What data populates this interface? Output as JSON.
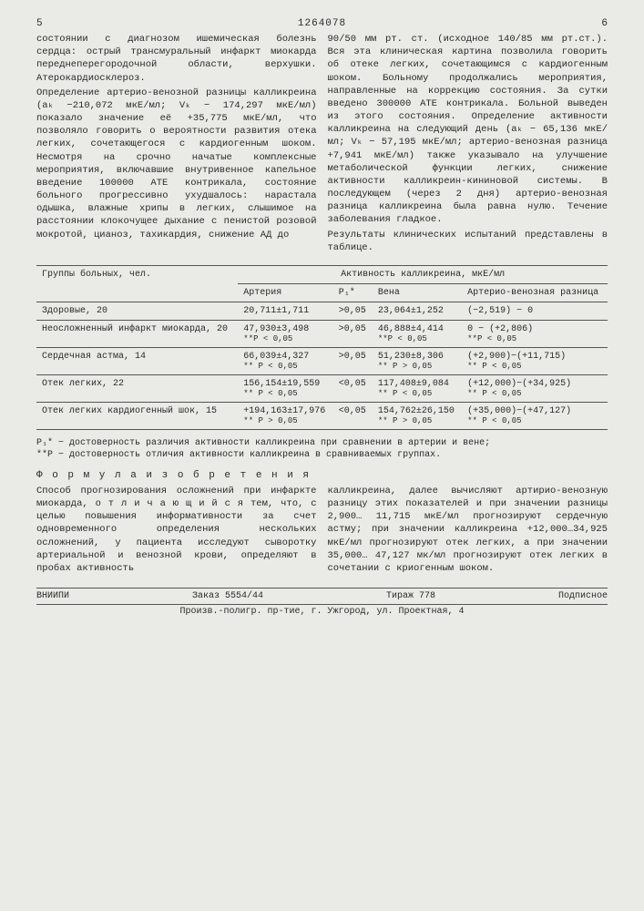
{
  "header": {
    "left_num": "5",
    "right_num": "6",
    "doc_number": "1264078"
  },
  "left_col": {
    "p1": "состоянии с диагнозом ишемическая болезнь сердца: острый трансмуральный инфаркт миокарда переднеперегородочной области, верхушки. Атерокардиосклероз.",
    "p2": "Определение артерио-венозной разницы калликреина (aₖ −210,072 мкЕ/мл; Vₖ − 174,297 мкЕ/мл) показало значение её +35,775 мкЕ/мл, что позволяло говорить о вероятности развития отека легких, сочетающегося с кардиогенным шоком. Несмотря на срочно начатые комплексные мероприятия, включавшие внутривенное капельное введение 100000 АТЕ контрикала, состояние больного прогрессивно ухудшалось: нарастала одышка, влажные хрипы в легких, слышимое на расстоянии клокочущее дыхание с пенистой розовой мокротой, цианоз, тахикардия, снижение АД до"
  },
  "right_col": {
    "p1": "90/50 мм рт. ст. (исходное 140/85 мм рт.ст.). Вся эта клиническая картина позволила говорить об отеке легких, сочетающимся с кардиогенным шоком. Больному продолжались мероприятия, направленные на коррекцию состояния. За сутки введено 300000 АТЕ контрикала. Больной выведен из этого состояния. Определение активности калликреина на следующий день (aₖ − 65,136 мкЕ/мл; Vₖ − 57,195 мкЕ/мл; артерио-венозная разница +7,941 мкЕ/мл) также указывало на улучшение метаболической функции легких, снижение активности калликреин-кининовой системы. В последующем (через 2 дня) артерио-венозная разница калликреина была равна нулю. Течение заболевания гладкое.",
    "p2": "Результаты клинических испытаний представлены в таблице."
  },
  "line_nums": {
    "n5": "5",
    "n10": "10",
    "n15": "15",
    "n20": "20",
    "n50": "50",
    "n55": "55"
  },
  "table": {
    "h_group": "Группы больных, чел.",
    "h_activity": "Активность калликреина, мкЕ/мл",
    "h_art": "Артерия",
    "h_p": "P₁*",
    "h_vena": "Вена",
    "h_avr": "Артерио-венозная разница",
    "rows": [
      {
        "g": "Здоровые, 20",
        "a": "20,711±1,711",
        "p": ">0,05",
        "v": "23,064±1,252",
        "d": "(−2,519) − 0"
      },
      {
        "g": "Неосложненный инфаркт миокарда, 20",
        "a": "47,930±3,498",
        "as": "**P < 0,05",
        "p": ">0,05",
        "v": "46,888±4,414",
        "vs": "**P < 0,05",
        "d": "0 − (+2,806)",
        "ds": "**P < 0,05"
      },
      {
        "g": "Сердечная астма, 14",
        "a": "66,039±4,327",
        "as": "** P < 0,05",
        "p": ">0,05",
        "v": "51,230±8,306",
        "vs": "** P > 0,05",
        "d": "(+2,900)−(+11,715)",
        "ds": "** P < 0,05"
      },
      {
        "g": "Отек легких, 22",
        "a": "156,154±19,559",
        "as": "** P < 0,05",
        "p": "<0,05",
        "v": "117,408±9,084",
        "vs": "** P < 0,05",
        "d": "(+12,000)−(+34,925)",
        "ds": "** P < 0,05"
      },
      {
        "g": "Отек легких кардиогенный шок, 15",
        "a": "+194,163±17,976",
        "as": "** P > 0,05",
        "p": "<0,05",
        "v": "154,762±26,150",
        "vs": "** P > 0,05",
        "d": "(+35,000)−(+47,127)",
        "ds": "** P < 0,05"
      }
    ]
  },
  "footnotes": {
    "f1": "P₁* − достоверность различия активности калликреина при сравнении в артерии и вене;",
    "f2": "**P − достоверность отличия активности калликреина в сравниваемых группах."
  },
  "formula": {
    "title": "Ф о р м у л а   и з о б р е т е н и я",
    "left": "Способ прогнозирования осложнений при инфаркте миокарда, о т л и ч а ю щ и й с я  тем, что, с целью повышения информативности за счет одновременного определения нескольких осложнений, у пациента исследуют сыворотку артериальной и венозной крови, определяют в пробах активность",
    "right": "калликреина, далее вычисляют артирио-венозную разницу этих показателей и при значении разницы 2,900… 11,715 мкЕ/мл прогнозируют сердечную астму; при значении калликреина +12,000…34,925 мкЕ/мл прогнозируют отек легких, а при значении 35,000… 47,127 мк/мл прогнозируют отек легких в сочетании с криогенным шоком."
  },
  "footer": {
    "org": "ВНИИПИ",
    "order": "Заказ 5554/44",
    "tirazh": "Тираж 778",
    "sub": "Подписное",
    "addr": "Произв.-полигр. пр-тие, г. Ужгород, ул. Проектная, 4"
  }
}
